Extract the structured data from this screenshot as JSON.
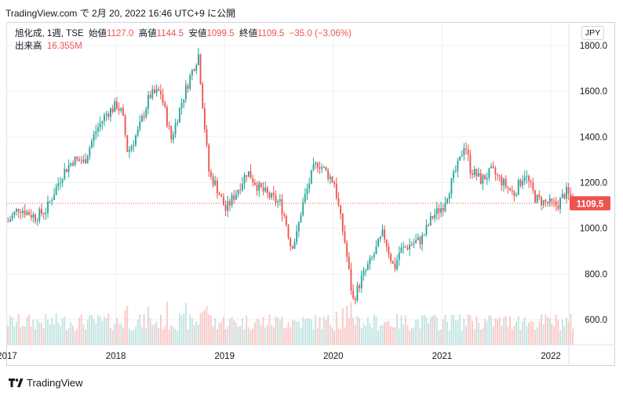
{
  "header": {
    "text": "TradingView.com で 2月 20, 2022 16:46 UTC+9 に公開"
  },
  "legend": {
    "symbol": "旭化成, 1週, TSE",
    "open_label": "始値",
    "open_value": "1127.0",
    "high_label": "高値",
    "high_value": "1144.5",
    "low_label": "安値",
    "low_value": "1099.5",
    "close_label": "終値",
    "close_value": "1109.5",
    "change": "−35.0 (−3.06%)",
    "volume_label": "出来高",
    "volume_value": "16.355M"
  },
  "currency": "JPY",
  "footer": {
    "brand": "TradingView"
  },
  "colors": {
    "up": "#26a69a",
    "down": "#ef5350",
    "up_volume": "#f1b7b5",
    "down_volume": "#f6c5c3",
    "grid": "#eef0f3",
    "axis_text": "#131722",
    "price_line": "#ef5350"
  },
  "chart_data": {
    "type": "candlestick",
    "last_price": 1109.5,
    "last_price_label": "1109.5",
    "y_ticks": [
      600,
      800,
      1000,
      1200,
      1400,
      1600,
      1800
    ],
    "y_tick_labels": [
      "600.0",
      "800.0",
      "1000.0",
      "1200.0",
      "1400.0",
      "1600.0",
      "1800.0"
    ],
    "ylim": [
      520,
      1850
    ],
    "x_ticks": [
      2017,
      2018,
      2019,
      2020,
      2021,
      2022
    ],
    "x_tick_labels": [
      "2017",
      "2018",
      "2019",
      "2020",
      "2021",
      "2022"
    ],
    "xlim": [
      2017.0,
      2022.22
    ],
    "price_keypoints": [
      [
        2017.0,
        1030
      ],
      [
        2017.1,
        1090
      ],
      [
        2017.25,
        1050
      ],
      [
        2017.35,
        1080
      ],
      [
        2017.5,
        1240
      ],
      [
        2017.6,
        1300
      ],
      [
        2017.7,
        1290
      ],
      [
        2017.8,
        1420
      ],
      [
        2017.9,
        1500
      ],
      [
        2018.0,
        1540
      ],
      [
        2018.05,
        1500
      ],
      [
        2018.1,
        1330
      ],
      [
        2018.2,
        1430
      ],
      [
        2018.3,
        1580
      ],
      [
        2018.4,
        1600
      ],
      [
        2018.5,
        1390
      ],
      [
        2018.6,
        1560
      ],
      [
        2018.7,
        1700
      ],
      [
        2018.75,
        1760
      ],
      [
        2018.8,
        1480
      ],
      [
        2018.85,
        1230
      ],
      [
        2018.9,
        1200
      ],
      [
        2019.0,
        1080
      ],
      [
        2019.1,
        1160
      ],
      [
        2019.2,
        1250
      ],
      [
        2019.3,
        1180
      ],
      [
        2019.4,
        1140
      ],
      [
        2019.5,
        1110
      ],
      [
        2019.55,
        1040
      ],
      [
        2019.6,
        920
      ],
      [
        2019.65,
        960
      ],
      [
        2019.7,
        1090
      ],
      [
        2019.8,
        1250
      ],
      [
        2019.85,
        1290
      ],
      [
        2019.9,
        1260
      ],
      [
        2020.0,
        1200
      ],
      [
        2020.05,
        1060
      ],
      [
        2020.1,
        930
      ],
      [
        2020.17,
        680
      ],
      [
        2020.25,
        780
      ],
      [
        2020.35,
        870
      ],
      [
        2020.45,
        980
      ],
      [
        2020.55,
        820
      ],
      [
        2020.6,
        900
      ],
      [
        2020.7,
        930
      ],
      [
        2020.8,
        950
      ],
      [
        2020.9,
        1050
      ],
      [
        2021.0,
        1100
      ],
      [
        2021.1,
        1230
      ],
      [
        2021.15,
        1290
      ],
      [
        2021.2,
        1380
      ],
      [
        2021.25,
        1260
      ],
      [
        2021.35,
        1210
      ],
      [
        2021.45,
        1250
      ],
      [
        2021.55,
        1200
      ],
      [
        2021.65,
        1150
      ],
      [
        2021.75,
        1240
      ],
      [
        2021.85,
        1130
      ],
      [
        2021.95,
        1110
      ],
      [
        2022.05,
        1100
      ],
      [
        2022.13,
        1160
      ],
      [
        2022.2,
        1109.5
      ]
    ]
  }
}
